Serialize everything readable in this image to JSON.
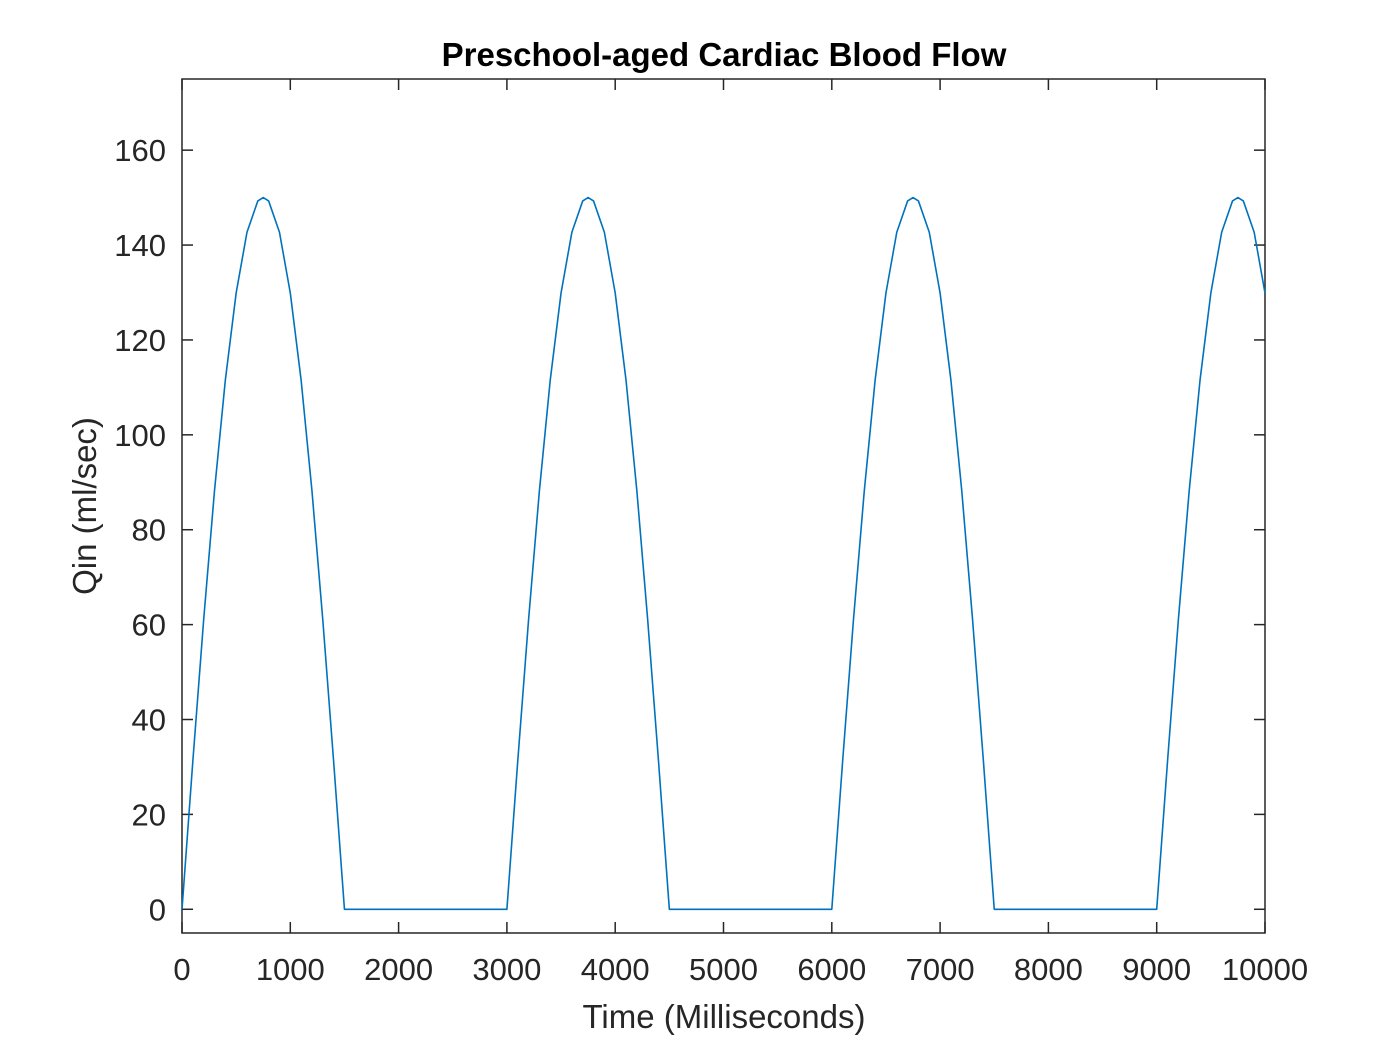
{
  "chart_data": {
    "type": "line",
    "title": "Preschool-aged Cardiac Blood Flow",
    "xlabel": "Time (Milliseconds)",
    "ylabel": "Qin (ml/sec)",
    "xlim": [
      0,
      10000
    ],
    "ylim": [
      -5,
      175
    ],
    "xticks": [
      0,
      1000,
      2000,
      3000,
      4000,
      5000,
      6000,
      7000,
      8000,
      9000,
      10000
    ],
    "yticks": [
      0,
      20,
      40,
      60,
      80,
      100,
      120,
      140,
      160
    ],
    "grid": false,
    "legend": "none",
    "colors": {
      "line": "#0072bd",
      "axes": "#262626"
    },
    "series": [
      {
        "x": [
          0,
          100,
          200,
          300,
          400,
          500,
          600,
          700,
          750,
          800,
          900,
          1000,
          1100,
          1200,
          1300,
          1400,
          1500,
          3000,
          3100,
          3200,
          3300,
          3400,
          3500,
          3600,
          3700,
          3750,
          3800,
          3900,
          4000,
          4100,
          4200,
          4300,
          4400,
          4500,
          6000,
          6100,
          6200,
          6300,
          6400,
          6500,
          6600,
          6700,
          6750,
          6800,
          6900,
          7000,
          7100,
          7200,
          7300,
          7400,
          7500,
          9000,
          9100,
          9200,
          9300,
          9400,
          9500,
          9600,
          9700,
          9750,
          9800,
          9900,
          10000
        ],
        "y": [
          0,
          31.2,
          61.0,
          88.2,
          111.5,
          129.9,
          142.7,
          149.3,
          150,
          149.3,
          142.7,
          129.9,
          111.5,
          88.2,
          61.0,
          31.2,
          0,
          0,
          31.2,
          61.0,
          88.2,
          111.5,
          129.9,
          142.7,
          149.3,
          150,
          149.3,
          142.7,
          129.9,
          111.5,
          88.2,
          61.0,
          31.2,
          0,
          0,
          31.2,
          61.0,
          88.2,
          111.5,
          129.9,
          142.7,
          149.3,
          150,
          149.3,
          142.7,
          129.9,
          111.5,
          88.2,
          61.0,
          31.2,
          0,
          0,
          31.2,
          61.0,
          88.2,
          111.5,
          129.9,
          142.7,
          149.3,
          150,
          149.3,
          142.7,
          129.9
        ]
      }
    ]
  }
}
